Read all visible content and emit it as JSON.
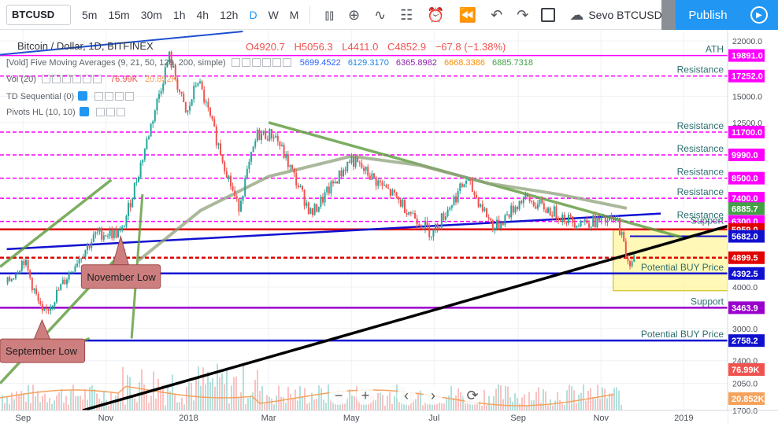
{
  "toolbar": {
    "symbol": "BTCUSD",
    "intervals": [
      "5m",
      "15m",
      "30m",
      "1h",
      "4h",
      "12h",
      "D",
      "W",
      "M"
    ],
    "active_interval": "D",
    "compare_icon": "plus-circle-icon",
    "chart_type_icon": "candles-icon",
    "indicator_icon": "wave-icon",
    "cloud_label": "Sevo BTCUSD",
    "publish_label": "Publish"
  },
  "colors": {
    "up": "#26a69a",
    "down": "#ef5350",
    "magenta": "#ff00ff",
    "resistance_red": "#e00000",
    "support_blue": "#1010d0",
    "trend_green": "#5b9a3a",
    "ma200": "#8da07a",
    "purple": "#9a00cc",
    "zone_yellow": "#fff59d",
    "label_box": "#cd7f7f"
  },
  "legend": {
    "title": "Bitcoin / Dollar, 1D, BITFINEX",
    "ohlc": [
      "O4920.7",
      "H5056.3",
      "L4411.0",
      "C4852.9",
      "−67.8 (−1.38%)"
    ],
    "ma_label": "[Vold] Five Moving Averages (9, 21, 50, 128, 200, simple)",
    "ma_values": [
      {
        "v": "5699.4522",
        "c": "#2962ff"
      },
      {
        "v": "6129.3170",
        "c": "#1e88e5"
      },
      {
        "v": "6365.8982",
        "c": "#8e24aa"
      },
      {
        "v": "6668.3386",
        "c": "#fb8c00"
      },
      {
        "v": "6885.7318",
        "c": "#43a047"
      }
    ],
    "vol_label": "Vol (20)",
    "vol_values": [
      {
        "v": "76.99K",
        "c": "#ef5350"
      },
      {
        "v": "20.852K",
        "c": "#f5a25d"
      }
    ],
    "td_label": "TD Sequential (0)",
    "pivots_label": "Pivots HL (10, 10)"
  },
  "chart_data": {
    "type": "candlestick",
    "title": "Bitcoin / Dollar, 1D, BITFINEX",
    "xlabel": "",
    "ylabel": "",
    "yscale": "log",
    "ylim": [
      1700,
      23500
    ],
    "x_ticks": [
      "Sep",
      "Nov",
      "2018",
      "Mar",
      "May",
      "Jul",
      "Sep",
      "Nov",
      "2019"
    ],
    "y_ticks": [
      22000,
      17000,
      15000,
      12500,
      10000,
      7500,
      6000,
      4000,
      3000,
      2400,
      2050,
      1700
    ],
    "price_anchors": [
      {
        "date": "2017-08-20",
        "price": 4100
      },
      {
        "date": "2017-09-01",
        "price": 4850
      },
      {
        "date": "2017-09-15",
        "price": 3250
      },
      {
        "date": "2017-10-10",
        "price": 4800
      },
      {
        "date": "2017-10-25",
        "price": 5800
      },
      {
        "date": "2017-11-12",
        "price": 5800
      },
      {
        "date": "2017-11-28",
        "price": 10000
      },
      {
        "date": "2017-12-17",
        "price": 19891
      },
      {
        "date": "2017-12-30",
        "price": 13000
      },
      {
        "date": "2018-01-07",
        "price": 17000
      },
      {
        "date": "2018-02-06",
        "price": 6900
      },
      {
        "date": "2018-02-20",
        "price": 11500
      },
      {
        "date": "2018-03-05",
        "price": 11500
      },
      {
        "date": "2018-04-01",
        "price": 6600
      },
      {
        "date": "2018-04-30",
        "price": 9700
      },
      {
        "date": "2018-06-01",
        "price": 7500
      },
      {
        "date": "2018-06-29",
        "price": 5800
      },
      {
        "date": "2018-07-24",
        "price": 8400
      },
      {
        "date": "2018-08-14",
        "price": 6000
      },
      {
        "date": "2018-09-04",
        "price": 7400
      },
      {
        "date": "2018-10-11",
        "price": 6300
      },
      {
        "date": "2018-11-13",
        "price": 6300
      },
      {
        "date": "2018-11-20",
        "price": 4800
      },
      {
        "date": "2018-11-25",
        "price": 4852
      }
    ],
    "horizontal_levels": [
      {
        "price": 19891,
        "label": "ATH",
        "tag": "19891.0",
        "color": "#ff00ff",
        "style": "solid"
      },
      {
        "price": 17252,
        "label": "Resistance",
        "tag": "17252.0",
        "color": "#ff00ff",
        "style": "dashed"
      },
      {
        "price": 11700,
        "label": "Resistance",
        "tag": "11700.0",
        "color": "#ff00ff",
        "style": "dashed"
      },
      {
        "price": 9990,
        "label": "Resistance",
        "tag": "9990.0",
        "color": "#ff00ff",
        "style": "dashed"
      },
      {
        "price": 8500,
        "label": "Resistance",
        "tag": "8500.0",
        "color": "#ff00ff",
        "style": "dashed"
      },
      {
        "price": 7400,
        "label": "Resistance",
        "tag": "7400.0",
        "color": "#ff00ff",
        "style": "dashed"
      },
      {
        "price": 6300,
        "label": "Resistance",
        "tag": "6300.0",
        "color": "#ff00ff",
        "style": "dashed"
      },
      {
        "price": 5959,
        "label": "",
        "tag": "5959.0",
        "color": "#e00000",
        "style": "solid"
      },
      {
        "price": 4899.5,
        "label": "",
        "tag": "4899.5",
        "color": "#e00000",
        "style": "dashed"
      },
      {
        "price": 4392.5,
        "label": "Potential BUY Price",
        "tag": "4392.5",
        "color": "#1010d0",
        "style": "solid"
      },
      {
        "price": 3463.9,
        "label": "Support",
        "tag": "3463.9",
        "color": "#9a00cc",
        "style": "solid"
      },
      {
        "price": 2758.2,
        "label": "Potential BUY Price",
        "tag": "2758.2",
        "color": "#1010d0",
        "style": "solid"
      }
    ],
    "support_label": {
      "label": "Support",
      "tag": "5682.0",
      "price": 5682
    },
    "last_tags": [
      {
        "tag": "6885.7",
        "price": 6885.7,
        "color": "#43a047"
      },
      {
        "tag": "76.99K",
        "color": "#ef5350"
      },
      {
        "tag": "20.852K",
        "color": "#f5a25d"
      }
    ],
    "annotations": [
      {
        "text": "November Low",
        "date": "2017-11-12",
        "price": 5800
      },
      {
        "text": "September Low",
        "date": "2017-09-15",
        "price": 3250
      }
    ],
    "buy_zone": {
      "from": "2018-11-10",
      "to": "2019-02-15",
      "high": 5959,
      "low": 4392.5
    }
  }
}
